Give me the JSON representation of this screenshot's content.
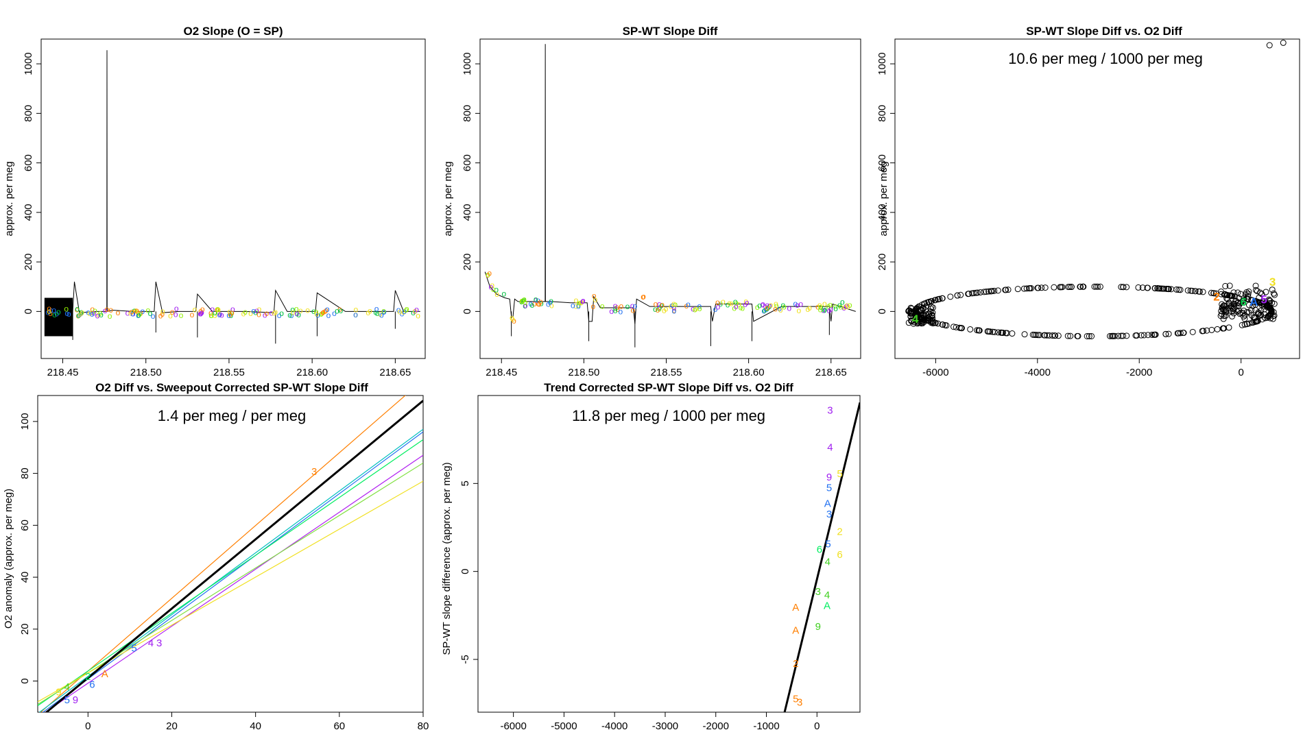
{
  "chart_data": [
    {
      "id": "p1",
      "type": "line",
      "title": "O2 Slope (O = SP)",
      "xlabel": "",
      "ylabel": "approx. per meg",
      "xlim": [
        218.437,
        218.668
      ],
      "ylim": [
        -190,
        1100
      ],
      "xticks": [
        218.45,
        218.5,
        218.55,
        218.6,
        218.65
      ],
      "xtick_labels": [
        "218.45",
        "218.50",
        "218.55",
        "218.60",
        "218.65"
      ],
      "yticks": [
        0,
        200,
        400,
        600,
        800,
        1000
      ],
      "ytick_labels": [
        "0",
        "200",
        "400",
        "600",
        "800",
        "1000"
      ],
      "series": [
        {
          "name": "trace",
          "color": "#000000",
          "x": [
            218.44,
            218.447,
            218.452,
            218.456,
            218.457,
            218.46,
            218.47,
            218.4765,
            218.4766,
            218.4767,
            218.48,
            218.492,
            218.505,
            218.506,
            218.51,
            218.52,
            218.53,
            218.531,
            218.54,
            218.56,
            218.577,
            218.578,
            218.585,
            218.6,
            218.602,
            218.603,
            218.62,
            218.649,
            218.65,
            218.655,
            218.665
          ],
          "y": [
            0,
            -5,
            5,
            0,
            120,
            -5,
            0,
            0,
            1055,
            0,
            5,
            0,
            0,
            120,
            -5,
            0,
            0,
            70,
            0,
            0,
            -5,
            85,
            0,
            0,
            0,
            75,
            0,
            0,
            85,
            0,
            0
          ]
        },
        {
          "name": "spikes-low",
          "color": "#000000",
          "x": [
            218.44,
            218.456,
            218.506,
            218.531,
            218.578,
            218.603,
            218.65
          ],
          "y": [
            -95,
            -115,
            -85,
            -105,
            -130,
            -100,
            -70
          ]
        }
      ],
      "markers": [
        {
          "labels": [
            "5",
            "6",
            "9",
            "2",
            "A",
            "4",
            "3"
          ],
          "colors": [
            "#f0e020",
            "#00c040",
            "#2070f0",
            "#ff7f00",
            "#a020f0",
            "#90f000",
            "#00ff60"
          ]
        }
      ]
    },
    {
      "id": "p2",
      "type": "line",
      "title": "SP-WT Slope Diff",
      "xlabel": "",
      "ylabel": "approx. per meg",
      "xlim": [
        218.437,
        218.668
      ],
      "ylim": [
        -190,
        1100
      ],
      "xticks": [
        218.45,
        218.5,
        218.55,
        218.6,
        218.65
      ],
      "xtick_labels": [
        "218.45",
        "218.50",
        "218.55",
        "218.60",
        "218.65"
      ],
      "yticks": [
        0,
        200,
        400,
        600,
        800,
        1000
      ],
      "ytick_labels": [
        "0",
        "200",
        "400",
        "600",
        "800",
        "1000"
      ],
      "series": [
        {
          "name": "trace",
          "color": "#000000",
          "x": [
            218.44,
            218.443,
            218.447,
            218.452,
            218.455,
            218.456,
            218.457,
            218.458,
            218.46,
            218.47,
            218.4765,
            218.4766,
            218.4767,
            218.48,
            218.492,
            218.502,
            218.503,
            218.505,
            218.506,
            218.51,
            218.52,
            218.53,
            218.531,
            218.532,
            218.54,
            218.56,
            218.577,
            218.578,
            218.58,
            218.6,
            218.602,
            218.603,
            218.62,
            218.649,
            218.65,
            218.651,
            218.665
          ],
          "y": [
            160,
            100,
            70,
            55,
            50,
            -20,
            -20,
            50,
            40,
            40,
            40,
            1080,
            40,
            40,
            35,
            35,
            -40,
            -40,
            60,
            15,
            15,
            15,
            -50,
            50,
            20,
            20,
            20,
            -40,
            30,
            30,
            30,
            -40,
            20,
            20,
            -40,
            30,
            0
          ]
        },
        {
          "name": "spikes-low",
          "color": "#000000",
          "x": [
            218.456,
            218.503,
            218.531,
            218.577,
            218.602,
            218.649
          ],
          "y": [
            -100,
            -120,
            -145,
            -140,
            -120,
            -95
          ]
        }
      ]
    },
    {
      "id": "p3",
      "type": "scatter",
      "title": "SP-WT Slope Diff vs. O2 Diff",
      "annotation": "10.6 per meg / 1000 per meg",
      "xlabel": "",
      "ylabel": "approx. per meg",
      "xlim": [
        -6800,
        1150
      ],
      "ylim": [
        -190,
        1100
      ],
      "xticks": [
        -6000,
        -4000,
        -2000,
        0
      ],
      "xtick_labels": [
        "-6000",
        "-4000",
        "-2000",
        "0"
      ],
      "yticks": [
        0,
        200,
        400,
        600,
        800,
        1000
      ],
      "ytick_labels": [
        "0",
        "200",
        "400",
        "600",
        "800",
        "1000"
      ],
      "outliers": {
        "x": [
          560,
          830
        ],
        "y": [
          1075,
          1085
        ]
      },
      "cluster_labels": [
        {
          "t": "4",
          "x": -6400,
          "y": -30,
          "color": "#40d020"
        },
        {
          "t": "2",
          "x": -480,
          "y": 60,
          "color": "#ff7f00"
        },
        {
          "t": "6",
          "x": 50,
          "y": 40,
          "color": "#00c040"
        },
        {
          "t": "A",
          "x": 250,
          "y": 40,
          "color": "#2070f0"
        },
        {
          "t": "5",
          "x": 450,
          "y": 50,
          "color": "#a020f0"
        },
        {
          "t": "3",
          "x": 620,
          "y": 120,
          "color": "#f0e020"
        }
      ]
    },
    {
      "id": "p4",
      "type": "line",
      "title": "O2 Diff vs. Sweepout Corrected SP-WT Slope Diff",
      "annotation": "1.4 per meg / per meg",
      "xlabel": "",
      "ylabel": "O2 anomaly (approx. per meg)",
      "xlim": [
        -12,
        80
      ],
      "ylim": [
        -12,
        110
      ],
      "xticks": [
        0,
        20,
        40,
        60,
        80
      ],
      "xtick_labels": [
        "0",
        "20",
        "40",
        "60",
        "80"
      ],
      "yticks": [
        0,
        20,
        40,
        60,
        80,
        100
      ],
      "ytick_labels": [
        "0",
        "20",
        "40",
        "60",
        "80",
        "100"
      ],
      "fit": {
        "x": [
          -12,
          80
        ],
        "y": [
          -14.8,
          108
        ]
      },
      "series": [
        {
          "name": "orange",
          "color": "#ff7f00",
          "x": [
            -12,
            80
          ],
          "y": [
            -13,
            116
          ]
        },
        {
          "name": "teal",
          "color": "#00bfbf",
          "x": [
            -12,
            80
          ],
          "y": [
            -12.5,
            97
          ]
        },
        {
          "name": "blue",
          "color": "#2070f0",
          "x": [
            -12,
            80
          ],
          "y": [
            -13.5,
            96
          ]
        },
        {
          "name": "green",
          "color": "#00ee60",
          "x": [
            -12,
            80
          ],
          "y": [
            -9.5,
            93
          ]
        },
        {
          "name": "purple",
          "color": "#b020f0",
          "x": [
            -12,
            80
          ],
          "y": [
            -14,
            87
          ]
        },
        {
          "name": "lime",
          "color": "#80e040",
          "x": [
            -12,
            80
          ],
          "y": [
            -9,
            84
          ]
        },
        {
          "name": "yellow",
          "color": "#f0e020",
          "x": [
            -12,
            80
          ],
          "y": [
            -8,
            77
          ]
        }
      ],
      "point_labels": [
        {
          "t": "3",
          "x": 54,
          "y": 81,
          "color": "#ff7f00"
        },
        {
          "t": "4",
          "x": 15,
          "y": 15,
          "color": "#a020f0"
        },
        {
          "t": "3",
          "x": 17,
          "y": 15,
          "color": "#a020f0"
        },
        {
          "t": "5",
          "x": 11,
          "y": 13,
          "color": "#2070f0"
        },
        {
          "t": "A",
          "x": 4,
          "y": 3,
          "color": "#ff7f00"
        },
        {
          "t": "2",
          "x": 0,
          "y": 2,
          "color": "#00ee60"
        },
        {
          "t": "6",
          "x": 1,
          "y": -1,
          "color": "#2070f0"
        },
        {
          "t": "9",
          "x": -7,
          "y": -4,
          "color": "#f0e020"
        },
        {
          "t": "4",
          "x": -5,
          "y": -2,
          "color": "#40d020"
        },
        {
          "t": "5",
          "x": -5,
          "y": -7,
          "color": "#2070f0"
        },
        {
          "t": "9",
          "x": -3,
          "y": -7,
          "color": "#a020f0"
        }
      ]
    },
    {
      "id": "p5",
      "type": "scatter",
      "title": "Trend Corrected SP-WT Slope Diff vs. O2 Diff",
      "annotation": "11.8 per meg / 1000 per meg",
      "xlabel": "",
      "ylabel": "SP-WT slope difference (approx. per meg)",
      "xlim": [
        -6700,
        850
      ],
      "ylim": [
        -8,
        10
      ],
      "xticks": [
        -6000,
        -5000,
        -4000,
        -3000,
        -2000,
        -1000,
        0
      ],
      "xtick_labels": [
        "-6000",
        "-5000",
        "-4000",
        "-3000",
        "-2000",
        "-1000",
        "0"
      ],
      "yticks": [
        -5,
        0,
        5
      ],
      "ytick_labels": [
        "-5",
        "0",
        "5"
      ],
      "fit": {
        "x": [
          -640,
          850
        ],
        "y": [
          -8,
          9.6
        ]
      },
      "point_labels": [
        {
          "t": "3",
          "x": 260,
          "y": 9.2,
          "color": "#a020f0"
        },
        {
          "t": "4",
          "x": 260,
          "y": 7.1,
          "color": "#a020f0"
        },
        {
          "t": "9",
          "x": 240,
          "y": 5.4,
          "color": "#a020f0"
        },
        {
          "t": "5",
          "x": 240,
          "y": 4.8,
          "color": "#2070f0"
        },
        {
          "t": "5",
          "x": 450,
          "y": 5.6,
          "color": "#f0e020"
        },
        {
          "t": "A",
          "x": 210,
          "y": 3.9,
          "color": "#2070f0"
        },
        {
          "t": "3",
          "x": 240,
          "y": 3.3,
          "color": "#2070f0"
        },
        {
          "t": "2",
          "x": 450,
          "y": 2.3,
          "color": "#f0e020"
        },
        {
          "t": "5",
          "x": 220,
          "y": 1.6,
          "color": "#2070f0"
        },
        {
          "t": "6",
          "x": 50,
          "y": 1.3,
          "color": "#00ee60"
        },
        {
          "t": "6",
          "x": 450,
          "y": 1.0,
          "color": "#f0e020"
        },
        {
          "t": "4",
          "x": 210,
          "y": 0.6,
          "color": "#40d020"
        },
        {
          "t": "3",
          "x": 20,
          "y": -1.1,
          "color": "#40d020"
        },
        {
          "t": "4",
          "x": 200,
          "y": -1.3,
          "color": "#40d020"
        },
        {
          "t": "A",
          "x": 200,
          "y": -1.9,
          "color": "#00ee60"
        },
        {
          "t": "A",
          "x": -420,
          "y": -2.0,
          "color": "#ff7f00"
        },
        {
          "t": "A",
          "x": -420,
          "y": -3.3,
          "color": "#ff7f00"
        },
        {
          "t": "9",
          "x": 20,
          "y": -3.1,
          "color": "#40d020"
        },
        {
          "t": "2",
          "x": -420,
          "y": -5.2,
          "color": "#ff7f00"
        },
        {
          "t": "5",
          "x": -420,
          "y": -7.2,
          "color": "#ff7f00"
        },
        {
          "t": "3",
          "x": -340,
          "y": -7.4,
          "color": "#ff7f00"
        }
      ]
    }
  ]
}
